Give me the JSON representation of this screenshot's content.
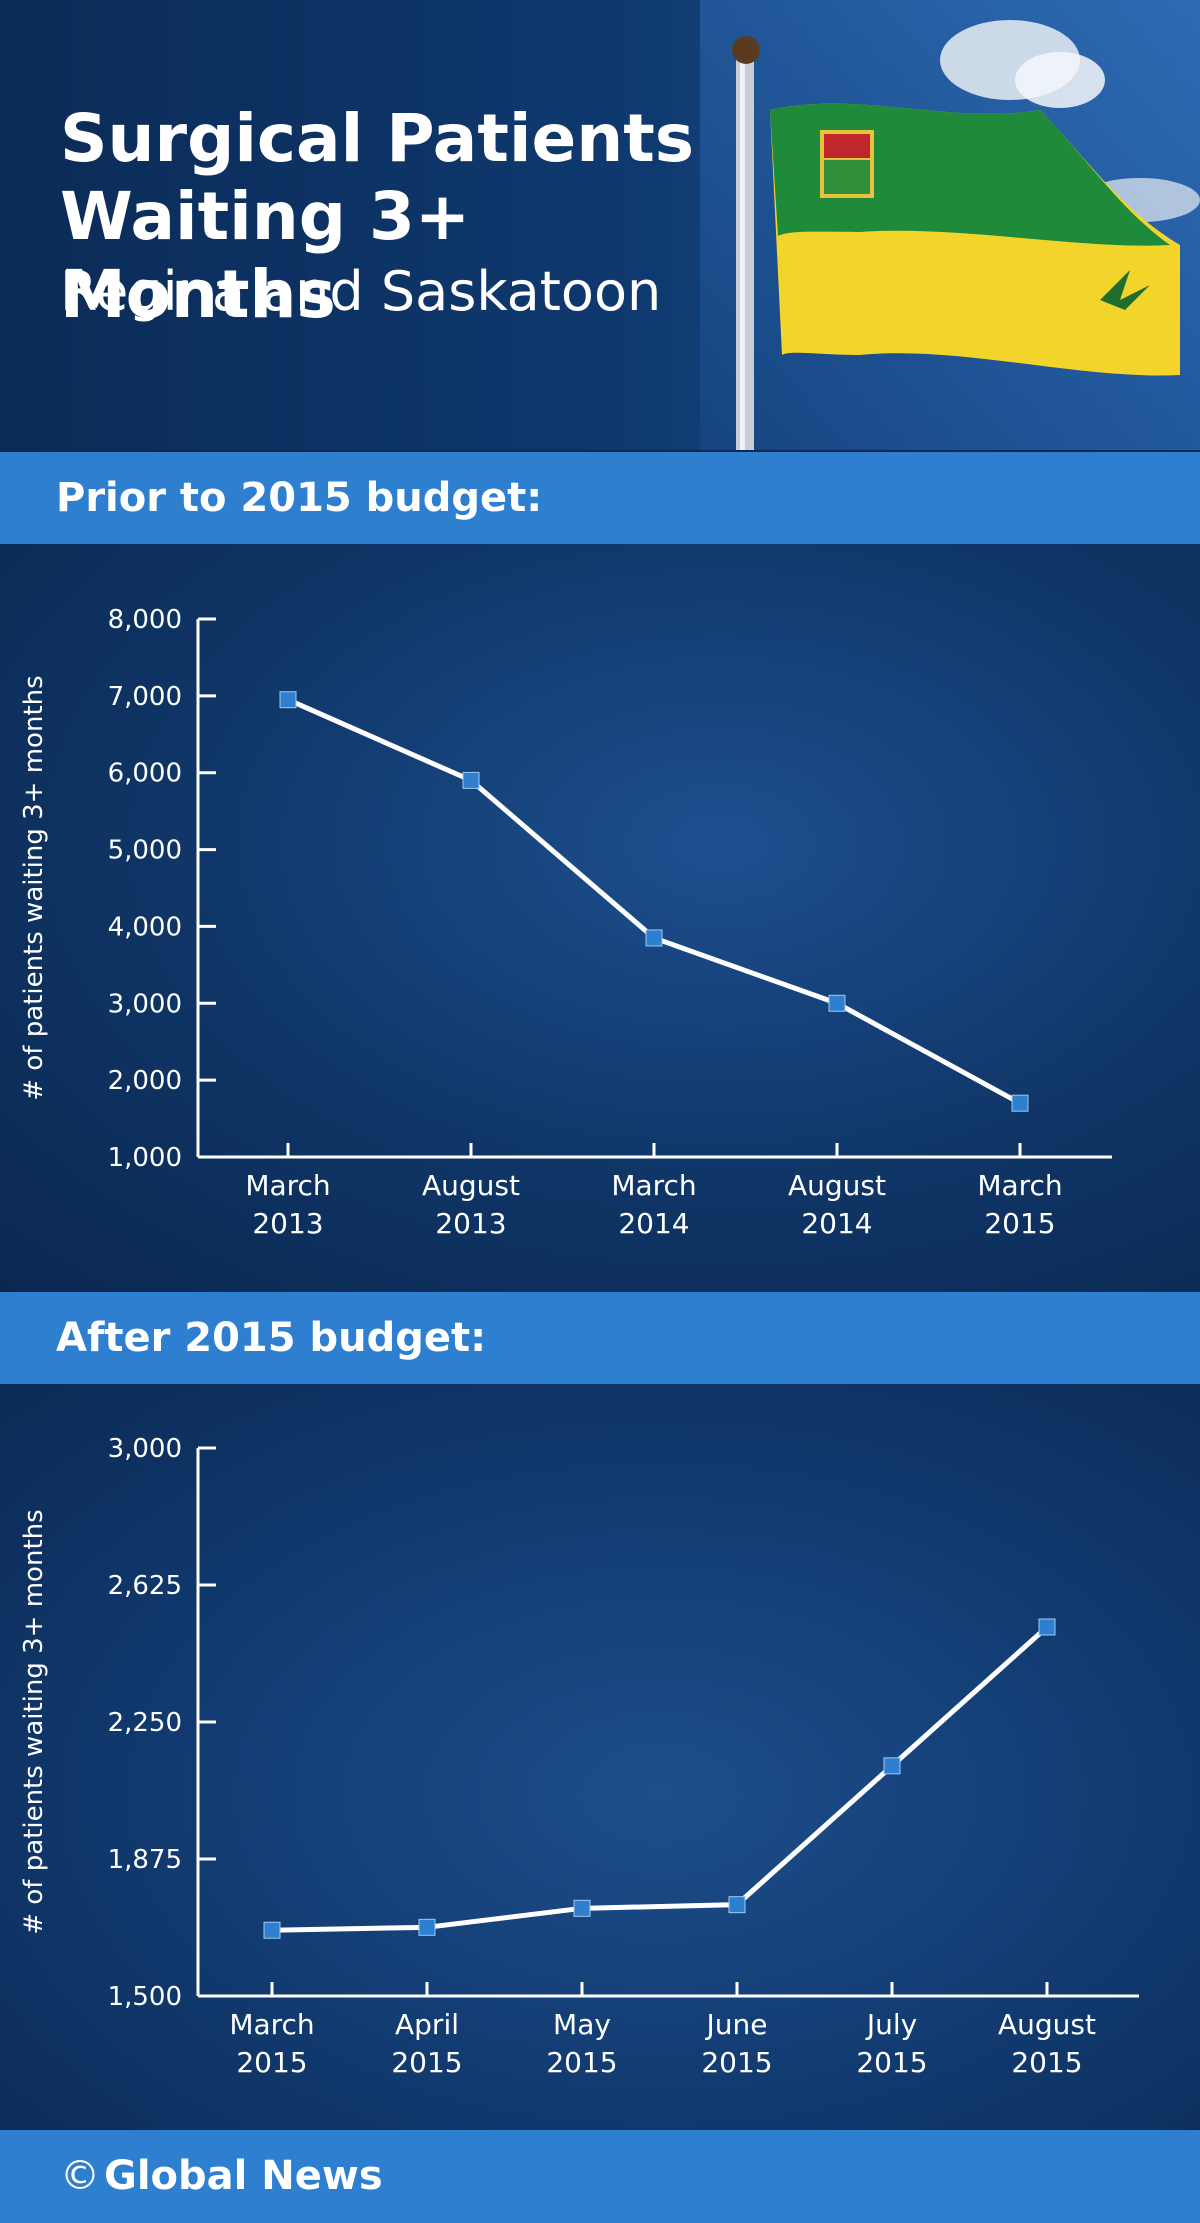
{
  "header": {
    "title": "Surgical Patients Waiting 3+ Months",
    "subtitle": "Regina and Saskatoon"
  },
  "colors": {
    "band": "#2f7fd0",
    "marker": "#2f7fd0",
    "line": "#ffffff"
  },
  "footer": {
    "copyright_symbol": "©",
    "brand": "Global News"
  },
  "chart_data": [
    {
      "type": "line",
      "heading": "Prior to 2015 budget:",
      "ylabel": "# of patients waiting 3+ months",
      "categories": [
        [
          "March",
          "2013"
        ],
        [
          "August",
          "2013"
        ],
        [
          "March",
          "2014"
        ],
        [
          "August",
          "2014"
        ],
        [
          "March",
          "2015"
        ]
      ],
      "values": [
        6950,
        5900,
        3850,
        3000,
        1700
      ],
      "ylim": [
        1000,
        8000
      ],
      "yticks": [
        "8,000",
        "7,000",
        "6,000",
        "5,000",
        "4,000",
        "3,000",
        "2,000",
        "1,000"
      ],
      "ytick_values": [
        8000,
        7000,
        6000,
        5000,
        4000,
        3000,
        2000,
        1000
      ]
    },
    {
      "type": "line",
      "heading": "After 2015 budget:",
      "ylabel": "# of patients waiting 3+ months",
      "categories": [
        [
          "March",
          "2015"
        ],
        [
          "April",
          "2015"
        ],
        [
          "May",
          "2015"
        ],
        [
          "June",
          "2015"
        ],
        [
          "July",
          "2015"
        ],
        [
          "August",
          "2015"
        ]
      ],
      "values": [
        1680,
        1688,
        1740,
        1750,
        2130,
        2510
      ],
      "ylim": [
        1500,
        3000
      ],
      "yticks": [
        "3,000",
        "2,625",
        "2,250",
        "1,875",
        "1,500"
      ],
      "ytick_values": [
        3000,
        2625,
        2250,
        1875,
        1500
      ]
    }
  ]
}
